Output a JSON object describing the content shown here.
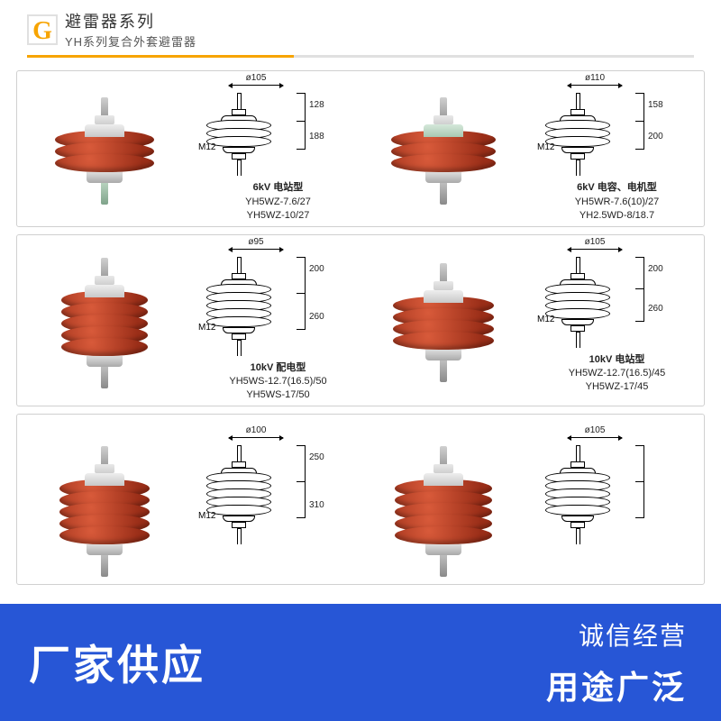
{
  "header": {
    "badge": "G",
    "title": "避雷器系列",
    "subtitle": "YH系列复合外套避雷器",
    "colors": {
      "accent": "#f7a400",
      "text": "#333333"
    }
  },
  "rows": [
    {
      "cells": [
        {
          "kind": "photo",
          "sheds": 3,
          "shed_width": 110,
          "cap_greenish": false,
          "stud_greenish": true
        },
        {
          "kind": "diagram",
          "top_dim": "ø105",
          "sheds": 3,
          "side_dims": [
            "128",
            "188"
          ],
          "bolt": "M12",
          "caption_label": "6kV  电站型",
          "caption_models": [
            "YH5WZ-7.6/27",
            "YH5WZ-10/27"
          ]
        },
        {
          "kind": "photo",
          "sheds": 3,
          "shed_width": 116,
          "cap_greenish": true,
          "stud_greenish": false
        },
        {
          "kind": "diagram",
          "top_dim": "ø110",
          "sheds": 3,
          "side_dims": [
            "158",
            "200"
          ],
          "bolt": "M12",
          "caption_label": "6kV  电容、电机型",
          "caption_models": [
            "YH5WR-7.6(10)/27",
            "YH2.5WD-8/18.7"
          ]
        }
      ]
    },
    {
      "cells": [
        {
          "kind": "photo",
          "sheds": 5,
          "shed_width": 96,
          "cap_greenish": false,
          "stud_greenish": false
        },
        {
          "kind": "diagram",
          "top_dim": "ø95",
          "sheds": 5,
          "side_dims": [
            "200",
            "260"
          ],
          "bolt": "M12",
          "caption_label": "10kV  配电型",
          "caption_models": [
            "YH5WS-12.7(16.5)/50",
            "YH5WS-17/50"
          ]
        },
        {
          "kind": "photo",
          "sheds": 4,
          "shed_width": 112,
          "cap_greenish": false,
          "stud_greenish": false
        },
        {
          "kind": "diagram",
          "top_dim": "ø105",
          "sheds": 4,
          "side_dims": [
            "200",
            "260"
          ],
          "bolt": "M12",
          "caption_label": "10kV  电站型",
          "caption_models": [
            "YH5WZ-12.7(16.5)/45",
            "YH5WZ-17/45"
          ]
        }
      ]
    },
    {
      "partial": true,
      "cells": [
        {
          "kind": "photo",
          "sheds": 5,
          "shed_width": 100,
          "cap_greenish": false,
          "stud_greenish": false
        },
        {
          "kind": "diagram",
          "top_dim": "ø100",
          "sheds": 5,
          "side_dims": [
            "250",
            "310"
          ],
          "bolt": "M12",
          "caption_label": "",
          "caption_models": []
        },
        {
          "kind": "photo",
          "sheds": 5,
          "shed_width": 108,
          "cap_greenish": false,
          "stud_greenish": false
        },
        {
          "kind": "diagram",
          "top_dim": "ø105",
          "sheds": 5,
          "side_dims": [
            "",
            ""
          ],
          "bolt": "",
          "caption_label": "",
          "caption_models": []
        }
      ]
    }
  ],
  "banner": {
    "left": "厂家供应",
    "right_top": "诚信经营",
    "right_bottom": "用途广泛",
    "bg_color": "#2756d6",
    "text_color": "#ffffff"
  },
  "style": {
    "shed_color_light": "#d85a3a",
    "shed_color_dark": "#9a2e18",
    "card_border": "#d0d0d0"
  }
}
